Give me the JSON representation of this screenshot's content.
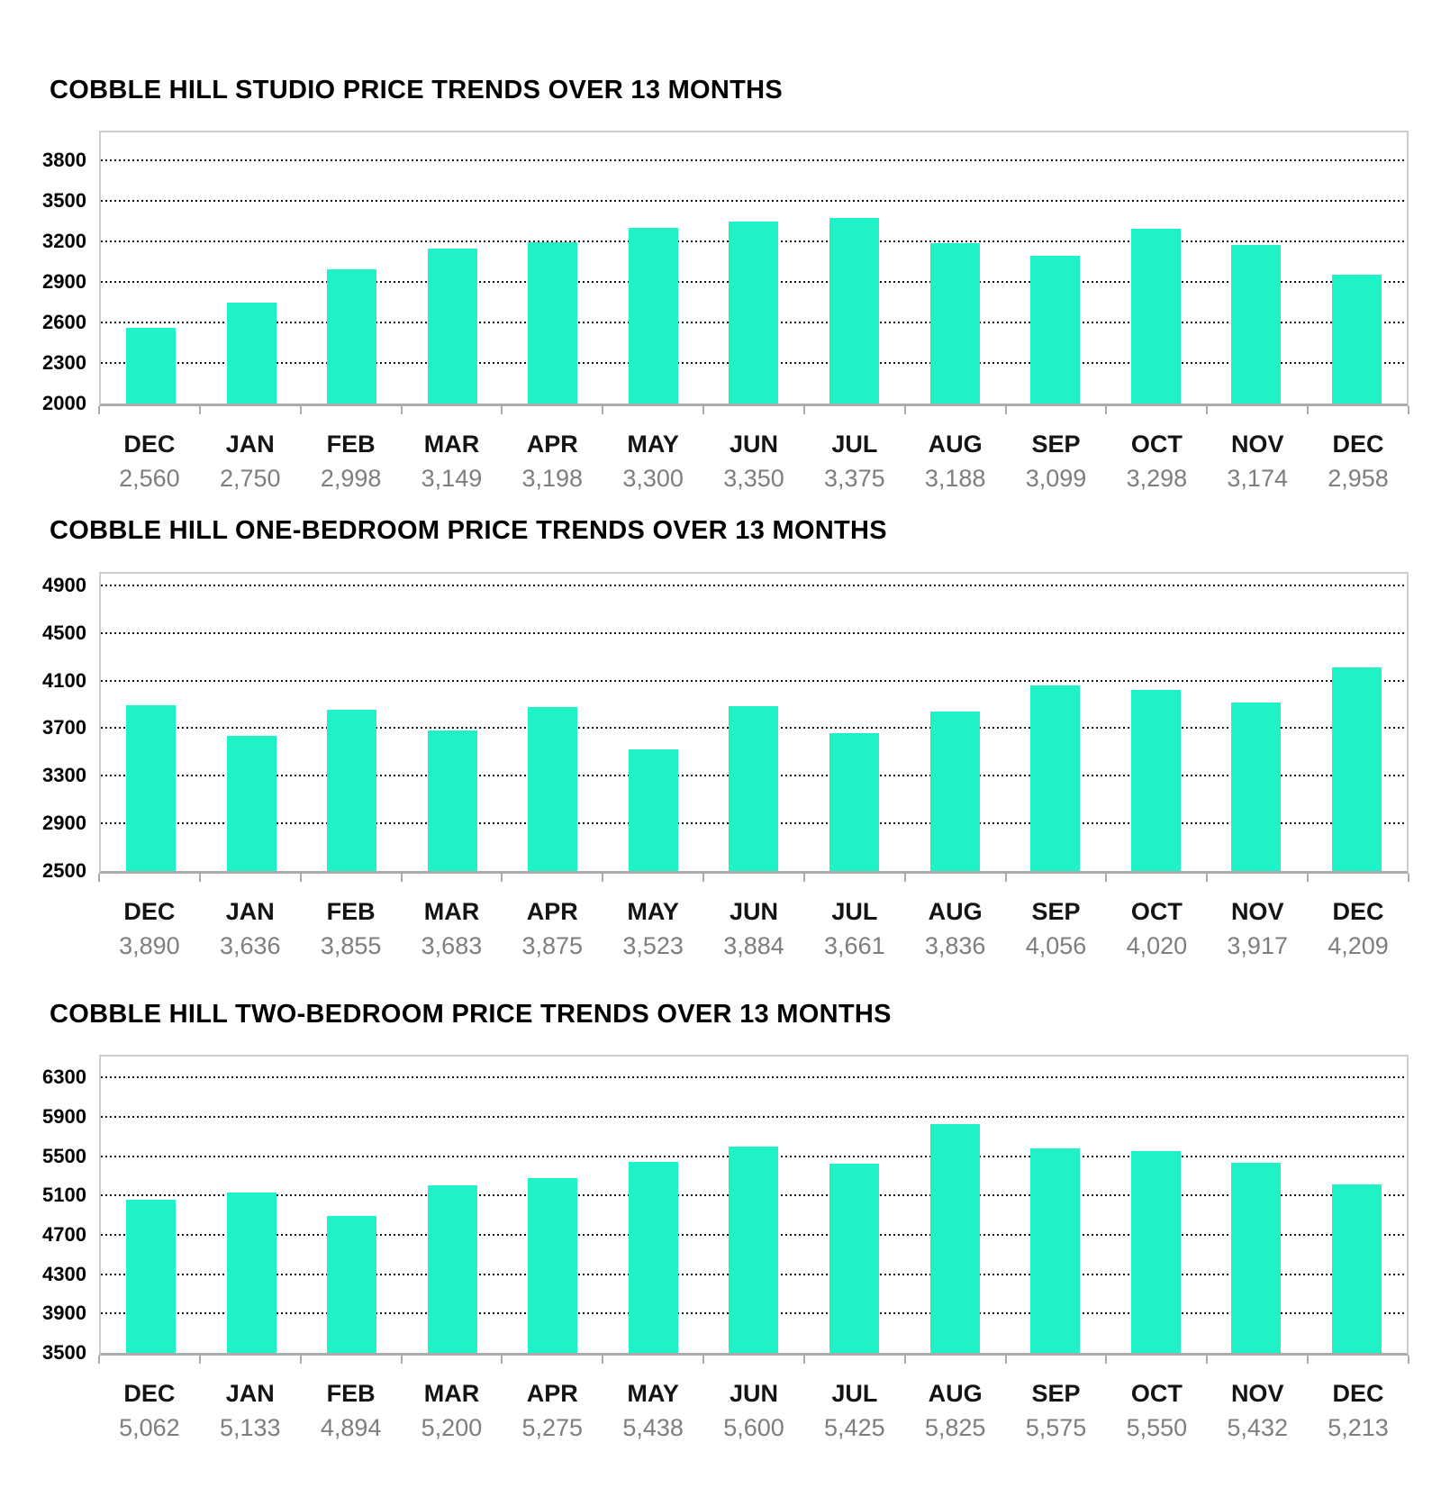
{
  "colors": {
    "bar": "#1ef2c6",
    "gridline": "#141414",
    "plot_frame": "#cdcdcd",
    "axis_line": "#ababab",
    "month_label": "#141414",
    "value_label": "#7e7e7e",
    "title": "#000000",
    "background": "#ffffff"
  },
  "chart_data": [
    {
      "type": "bar",
      "title": "COBBLE HILL STUDIO PRICE TRENDS OVER 13 MONTHS",
      "categories": [
        "DEC",
        "JAN",
        "FEB",
        "MAR",
        "APR",
        "MAY",
        "JUN",
        "JUL",
        "AUG",
        "SEP",
        "OCT",
        "NOV",
        "DEC"
      ],
      "values": [
        2560,
        2750,
        2998,
        3149,
        3198,
        3300,
        3350,
        3375,
        3188,
        3099,
        3298,
        3174,
        2958
      ],
      "value_labels": [
        "2,560",
        "2,750",
        "2,998",
        "3,149",
        "3,198",
        "3,300",
        "3,350",
        "3,375",
        "3,188",
        "3,099",
        "3,298",
        "3,174",
        "2,958"
      ],
      "y_ticks": [
        3800,
        3500,
        3200,
        2900,
        2600,
        2300,
        2000
      ],
      "ylim": [
        2000,
        3800
      ],
      "y_axis_top": 4007,
      "grid": true,
      "legend": "none",
      "xlabel": "",
      "ylabel": ""
    },
    {
      "type": "bar",
      "title": "COBBLE HILL ONE-BEDROOM PRICE TRENDS OVER 13 MONTHS",
      "categories": [
        "DEC",
        "JAN",
        "FEB",
        "MAR",
        "APR",
        "MAY",
        "JUN",
        "JUL",
        "AUG",
        "SEP",
        "OCT",
        "NOV",
        "DEC"
      ],
      "values": [
        3890,
        3636,
        3855,
        3683,
        3875,
        3523,
        3884,
        3661,
        3836,
        4056,
        4020,
        3917,
        4209
      ],
      "value_labels": [
        "3,890",
        "3,636",
        "3,855",
        "3,683",
        "3,875",
        "3,523",
        "3,884",
        "3,661",
        "3,836",
        "4,056",
        "4,020",
        "3,917",
        "4,209"
      ],
      "y_ticks": [
        4900,
        4500,
        4100,
        3700,
        3300,
        2900,
        2500
      ],
      "ylim": [
        2500,
        4900
      ],
      "y_axis_top": 5000,
      "grid": true,
      "legend": "none",
      "xlabel": "",
      "ylabel": ""
    },
    {
      "type": "bar",
      "title": "COBBLE HILL TWO-BEDROOM PRICE TRENDS OVER 13 MONTHS",
      "categories": [
        "DEC",
        "JAN",
        "FEB",
        "MAR",
        "APR",
        "MAY",
        "JUN",
        "JUL",
        "AUG",
        "SEP",
        "OCT",
        "NOV",
        "DEC"
      ],
      "values": [
        5062,
        5133,
        4894,
        5200,
        5275,
        5438,
        5600,
        5425,
        5825,
        5575,
        5550,
        5432,
        5213
      ],
      "value_labels": [
        "5,062",
        "5,133",
        "4,894",
        "5,200",
        "5,275",
        "5,438",
        "5,600",
        "5,425",
        "5,825",
        "5,575",
        "5,550",
        "5,432",
        "5,213"
      ],
      "y_ticks": [
        6300,
        5900,
        5500,
        5100,
        4700,
        4300,
        3900,
        3500
      ],
      "ylim": [
        3500,
        6300
      ],
      "y_axis_top": 6510,
      "grid": true,
      "legend": "none",
      "xlabel": "",
      "ylabel": ""
    }
  ]
}
